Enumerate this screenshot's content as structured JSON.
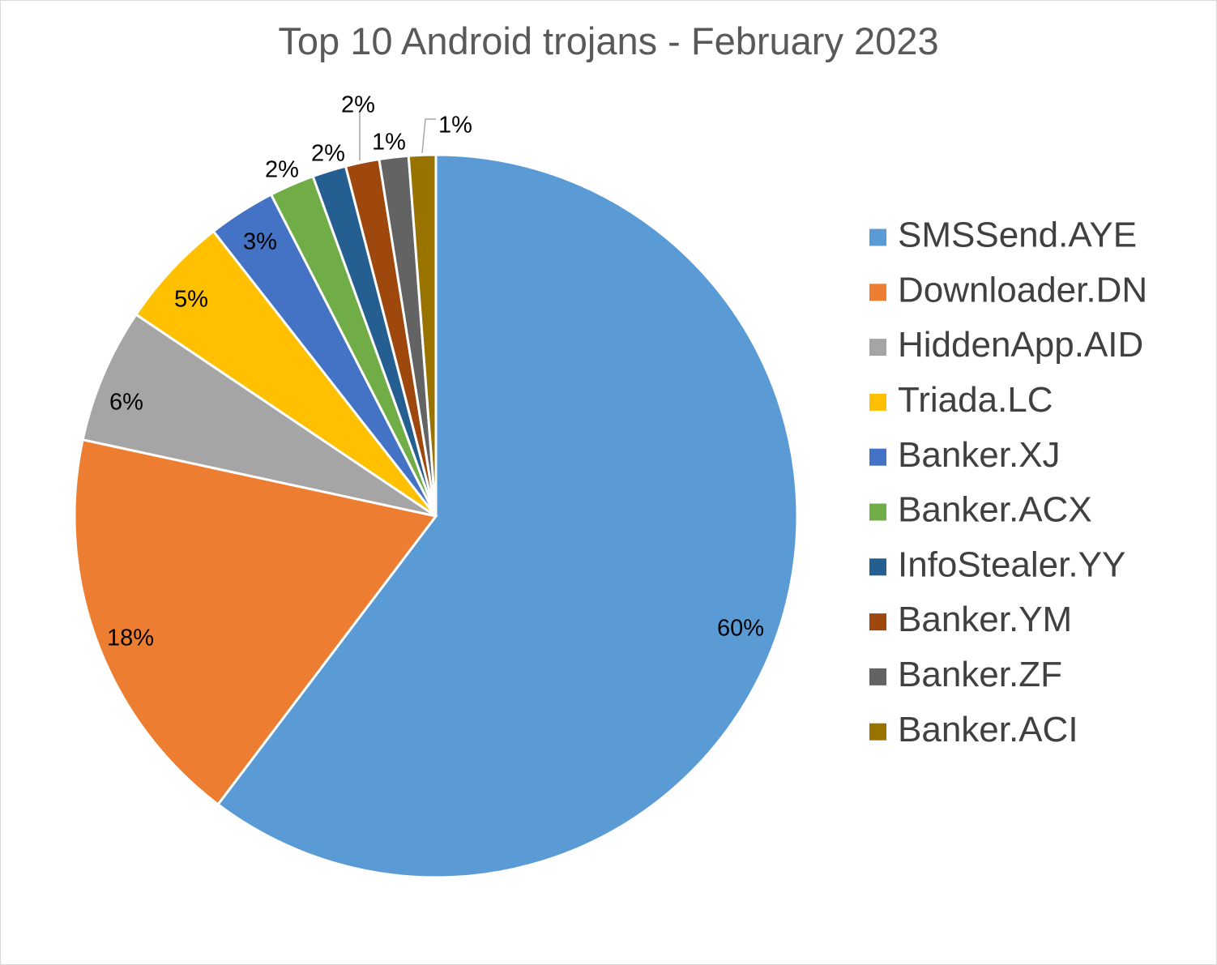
{
  "chart_data": {
    "type": "pie",
    "title": "Top 10 Android trojans - February 2023",
    "legend_position": "right",
    "slices": [
      {
        "name": "SMSSend.AYE",
        "value": 60,
        "label": "60%",
        "color": "#5B9BD5"
      },
      {
        "name": "Downloader.DN",
        "value": 18,
        "label": "18%",
        "color": "#ED7D31"
      },
      {
        "name": "HiddenApp.AID",
        "value": 6,
        "label": "6%",
        "color": "#A5A5A5"
      },
      {
        "name": "Triada.LC",
        "value": 5,
        "label": "5%",
        "color": "#FFC000"
      },
      {
        "name": "Banker.XJ",
        "value": 3,
        "label": "3%",
        "color": "#4472C4"
      },
      {
        "name": "Banker.ACX",
        "value": 2,
        "label": "2%",
        "color": "#70AD47"
      },
      {
        "name": "InfoStealer.YY",
        "value": 1.5,
        "label": "2%",
        "color": "#255E91"
      },
      {
        "name": "Banker.YM",
        "value": 1.5,
        "label": "2%",
        "color": "#9E480E"
      },
      {
        "name": "Banker.ZF",
        "value": 1.3,
        "label": "1%",
        "color": "#636363"
      },
      {
        "name": "Banker.ACI",
        "value": 1.2,
        "label": "1%",
        "color": "#997300"
      }
    ]
  }
}
